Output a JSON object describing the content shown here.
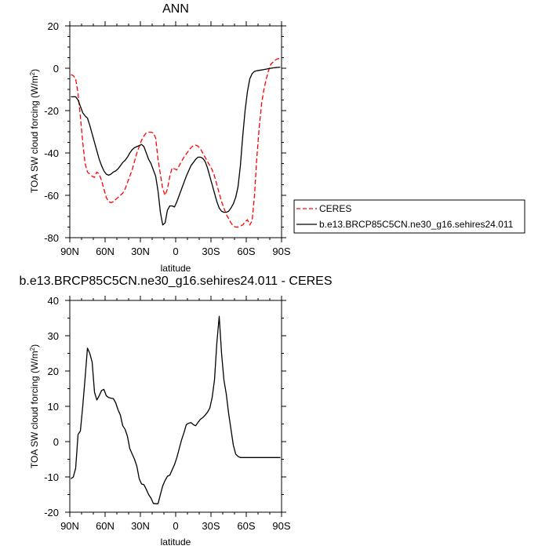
{
  "chart_data": [
    {
      "type": "line",
      "title": "ANN",
      "xlabel": "latitude",
      "ylabel": "TOA SW cloud forcing (W/m²)",
      "xlim": [
        90,
        -90
      ],
      "ylim": [
        -80,
        20
      ],
      "x_ticks": [
        90,
        60,
        30,
        0,
        -30,
        -60,
        -90
      ],
      "x_tick_labels": [
        "90N",
        "60N",
        "30N",
        "0",
        "30S",
        "60S",
        "90S"
      ],
      "y_ticks": [
        20,
        0,
        -20,
        -40,
        -60,
        -80
      ],
      "y_tick_labels": [
        "20",
        "0",
        "-20",
        "-40",
        "-60",
        "-80"
      ],
      "legend_position": "right",
      "series": [
        {
          "name": "CERES",
          "color": "#ff0000",
          "dash": "dashed",
          "x": [
            89,
            87,
            85,
            83,
            81,
            79,
            77,
            75,
            73,
            71,
            69,
            67,
            65,
            63,
            61,
            59,
            57,
            55,
            53,
            51,
            49,
            47,
            45,
            43,
            41,
            39,
            37,
            35,
            33,
            31,
            29,
            27,
            25,
            23,
            21,
            19,
            17,
            15,
            13,
            11,
            9,
            7,
            5,
            3,
            1,
            -1,
            -3,
            -5,
            -7,
            -9,
            -11,
            -13,
            -15,
            -17,
            -19,
            -21,
            -23,
            -25,
            -27,
            -29,
            -31,
            -33,
            -35,
            -37,
            -39,
            -41,
            -43,
            -45,
            -47,
            -49,
            -51,
            -53,
            -55,
            -57,
            -59,
            -61,
            -63,
            -65,
            -67,
            -69,
            -71,
            -73,
            -75,
            -77,
            -79,
            -81,
            -83,
            -85,
            -87,
            -89
          ],
          "y": [
            -3,
            -3.5,
            -5,
            -12,
            -23,
            -35,
            -45,
            -49,
            -50,
            -51,
            -51.5,
            -49,
            -50,
            -53,
            -57,
            -61,
            -63,
            -63.5,
            -63,
            -62,
            -61,
            -60,
            -59,
            -57,
            -54,
            -51,
            -48,
            -44,
            -40,
            -37,
            -34,
            -32,
            -30.5,
            -30.2,
            -30.2,
            -30.5,
            -33,
            -43,
            -50,
            -57,
            -60,
            -57,
            -51,
            -47,
            -47.5,
            -48,
            -46,
            -44,
            -42,
            -40.5,
            -39,
            -37.5,
            -36.5,
            -36.3,
            -36.8,
            -38,
            -40,
            -42,
            -44,
            -46,
            -48,
            -51,
            -55,
            -59,
            -63,
            -66,
            -69,
            -71,
            -73,
            -74.5,
            -75,
            -75,
            -74.5,
            -74,
            -72.5,
            -71.5,
            -74,
            -72,
            -60,
            -42,
            -28,
            -17,
            -10,
            -5,
            -1,
            2,
            3,
            4,
            4.5,
            4.5
          ]
        },
        {
          "name": "b.e13.BRCP85C5CN.ne30_g16.sehires24.011",
          "color": "#000000",
          "dash": "solid",
          "x": [
            89,
            87,
            85,
            83,
            81,
            79,
            77,
            75,
            73,
            71,
            69,
            67,
            65,
            63,
            61,
            59,
            57,
            55,
            53,
            51,
            49,
            47,
            45,
            43,
            41,
            39,
            37,
            35,
            33,
            31,
            29,
            27,
            25,
            23,
            21,
            19,
            17,
            15,
            13,
            11,
            9,
            7,
            5,
            3,
            1,
            -1,
            -3,
            -5,
            -7,
            -9,
            -11,
            -13,
            -15,
            -17,
            -19,
            -21,
            -23,
            -25,
            -27,
            -29,
            -31,
            -33,
            -35,
            -37,
            -39,
            -41,
            -43,
            -45,
            -47,
            -49,
            -51,
            -53,
            -55,
            -57,
            -59,
            -61,
            -63,
            -65,
            -67,
            -69,
            -71,
            -73,
            -75,
            -77,
            -79,
            -81,
            -83,
            -85,
            -87,
            -89
          ],
          "y": [
            -13.5,
            -13.5,
            -13.5,
            -15,
            -18,
            -21,
            -22.5,
            -23.5,
            -27,
            -31,
            -35,
            -39,
            -43,
            -46,
            -48.5,
            -50,
            -50.5,
            -50,
            -49,
            -48.5,
            -47.5,
            -46,
            -44.5,
            -43.5,
            -42,
            -40,
            -38.5,
            -37.5,
            -37,
            -36.5,
            -36,
            -37,
            -40,
            -43,
            -45,
            -48,
            -51,
            -58,
            -68,
            -74,
            -73,
            -67,
            -65,
            -65,
            -65.5,
            -63,
            -60,
            -57,
            -54,
            -51,
            -48.5,
            -46,
            -44.5,
            -43,
            -42,
            -42,
            -42.5,
            -44,
            -47,
            -51,
            -55,
            -59,
            -63,
            -66,
            -67.5,
            -68,
            -68,
            -67.5,
            -66,
            -64,
            -61,
            -56,
            -46,
            -32,
            -20,
            -11,
            -5,
            -2.5,
            -1.5,
            -1.2,
            -1,
            -0.8,
            -0.6,
            -0.4,
            -0.2,
            0,
            0.2,
            0.3,
            0.4,
            0.5
          ]
        }
      ]
    },
    {
      "type": "line",
      "title": "b.e13.BRCP85C5CN.ne30_g16.sehires24.011 - CERES",
      "xlabel": "latitude",
      "ylabel": "TOA SW cloud forcing (W/m²)",
      "xlim": [
        90,
        -90
      ],
      "ylim": [
        -20,
        40
      ],
      "x_ticks": [
        90,
        60,
        30,
        0,
        -30,
        -60,
        -90
      ],
      "x_tick_labels": [
        "90N",
        "60N",
        "30N",
        "0",
        "30S",
        "60S",
        "90S"
      ],
      "y_ticks": [
        40,
        30,
        20,
        10,
        0,
        -10,
        -20
      ],
      "y_tick_labels": [
        "40",
        "30",
        "20",
        "10",
        "0",
        "-10",
        "-20"
      ],
      "series": [
        {
          "color": "#000000",
          "dash": "solid",
          "x": [
            89,
            87,
            85,
            83,
            81,
            79,
            77,
            75,
            73,
            71,
            69,
            67,
            65,
            63,
            61,
            59,
            57,
            55,
            53,
            51,
            49,
            47,
            45,
            43,
            41,
            39,
            37,
            35,
            33,
            31,
            29,
            27,
            25,
            23,
            21,
            19,
            17,
            15,
            13,
            11,
            9,
            7,
            5,
            3,
            1,
            -1,
            -3,
            -5,
            -7,
            -9,
            -11,
            -13,
            -15,
            -17,
            -19,
            -21,
            -23,
            -25,
            -27,
            -29,
            -31,
            -33,
            -35,
            -37,
            -39,
            -41,
            -43,
            -45,
            -47,
            -49,
            -51,
            -53,
            -55,
            -57,
            -59,
            -61,
            -63,
            -65,
            -67,
            -69,
            -71,
            -73,
            -75,
            -77,
            -79,
            -81,
            -83,
            -85,
            -87,
            -89
          ],
          "y": [
            -10.5,
            -10,
            -7.5,
            2,
            3,
            10,
            18,
            26.5,
            25,
            22.5,
            14,
            11.8,
            13,
            14.5,
            14.8,
            13,
            12.5,
            12.3,
            12.2,
            11,
            9,
            7.5,
            4.5,
            3.5,
            1.5,
            -2,
            -3.5,
            -5,
            -7,
            -10.5,
            -12,
            -12.2,
            -13.5,
            -15,
            -16,
            -17.5,
            -17.6,
            -17.6,
            -15,
            -12.5,
            -11,
            -9.8,
            -9.5,
            -8,
            -6.5,
            -4.5,
            -2,
            0.5,
            2.5,
            4.8,
            5.2,
            5.4,
            4.8,
            4.5,
            5.5,
            6.3,
            6.8,
            7.5,
            8.3,
            9.5,
            12.5,
            17.5,
            28,
            35.5,
            25,
            17.5,
            13.5,
            8,
            3.5,
            -1,
            -3.5,
            -4.2,
            -4.5,
            -4.5,
            -4.5,
            -4.5,
            -4.5,
            -4.5,
            -4.5,
            -4.5,
            -4.5,
            -4.5,
            -4.5,
            -4.5,
            -4.5,
            -4.5,
            -4.5,
            -4.5,
            -4.5,
            -4.5
          ]
        }
      ]
    }
  ]
}
